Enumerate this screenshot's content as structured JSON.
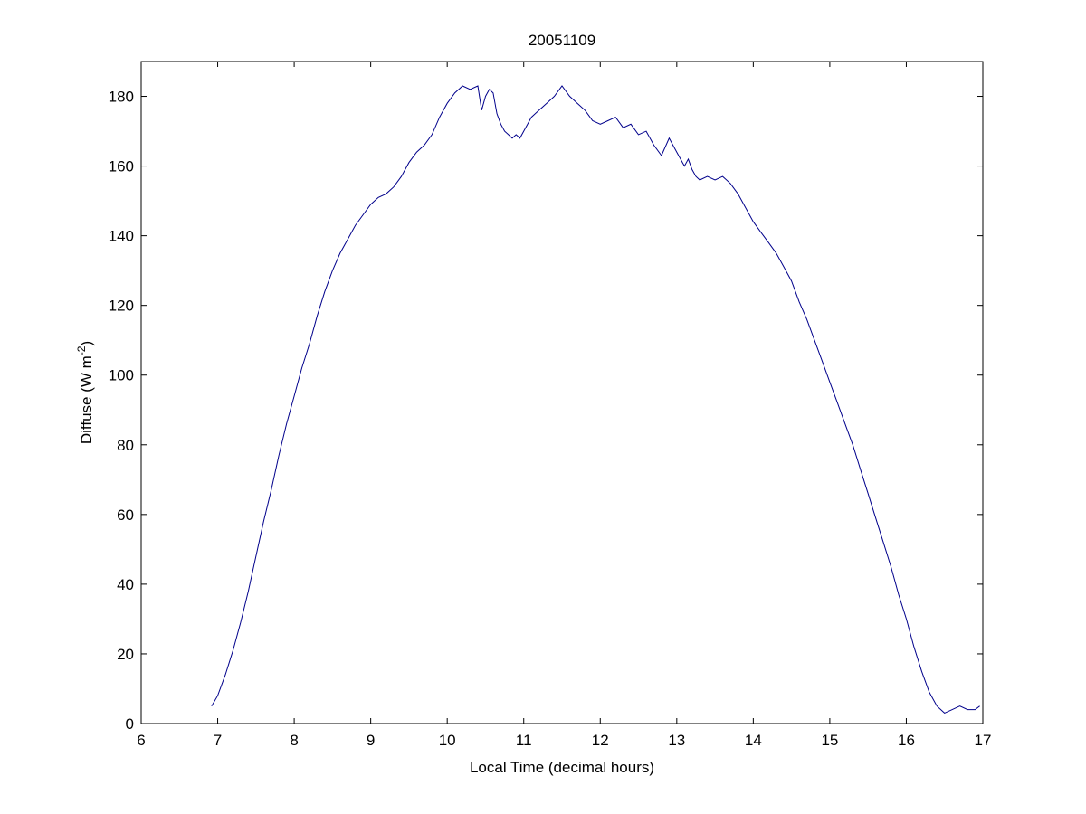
{
  "figure": {
    "background": "#ffffff",
    "line_color": "#00008b"
  },
  "chart_data": {
    "type": "line",
    "title": "20051109",
    "xlabel": "Local Time (decimal hours)",
    "ylabel": {
      "prefix": "Diffuse (W m",
      "superscript": "-2",
      "suffix": ")"
    },
    "xlim": [
      6,
      17
    ],
    "ylim": [
      0,
      190
    ],
    "xticks": [
      6,
      7,
      8,
      9,
      10,
      11,
      12,
      13,
      14,
      15,
      16,
      17
    ],
    "xtick_labels": [
      "6",
      "7",
      "8",
      "9",
      "10",
      "11",
      "12",
      "13",
      "14",
      "15",
      "16",
      "17"
    ],
    "yticks": [
      0,
      20,
      40,
      60,
      80,
      100,
      120,
      140,
      160,
      180
    ],
    "ytick_labels": [
      "0",
      "20",
      "40",
      "60",
      "80",
      "100",
      "120",
      "140",
      "160",
      "180"
    ],
    "grid": false,
    "box": true,
    "series": [
      {
        "x": [
          6.92,
          7.0,
          7.1,
          7.2,
          7.3,
          7.4,
          7.5,
          7.6,
          7.7,
          7.8,
          7.9,
          8.0,
          8.1,
          8.2,
          8.3,
          8.4,
          8.5,
          8.6,
          8.7,
          8.8,
          8.9,
          9.0,
          9.1,
          9.2,
          9.3,
          9.4,
          9.5,
          9.6,
          9.7,
          9.8,
          9.9,
          10.0,
          10.1,
          10.2,
          10.3,
          10.4,
          10.45,
          10.5,
          10.55,
          10.6,
          10.65,
          10.7,
          10.75,
          10.8,
          10.85,
          10.9,
          10.95,
          11.0,
          11.05,
          11.1,
          11.2,
          11.3,
          11.4,
          11.5,
          11.6,
          11.7,
          11.8,
          11.9,
          12.0,
          12.1,
          12.2,
          12.3,
          12.4,
          12.5,
          12.6,
          12.7,
          12.8,
          12.9,
          13.0,
          13.05,
          13.1,
          13.15,
          13.2,
          13.25,
          13.3,
          13.4,
          13.5,
          13.6,
          13.7,
          13.8,
          13.9,
          14.0,
          14.1,
          14.2,
          14.3,
          14.4,
          14.5,
          14.6,
          14.7,
          14.8,
          14.9,
          15.0,
          15.1,
          15.2,
          15.3,
          15.4,
          15.5,
          15.6,
          15.7,
          15.8,
          15.9,
          16.0,
          16.1,
          16.2,
          16.3,
          16.4,
          16.5,
          16.6,
          16.7,
          16.8,
          16.9,
          16.96
        ],
        "y": [
          5,
          8,
          14,
          21,
          29,
          38,
          48,
          58,
          67,
          77,
          86,
          94,
          102,
          109,
          117,
          124,
          130,
          135,
          139,
          143,
          146,
          149,
          151,
          152,
          154,
          157,
          161,
          164,
          166,
          169,
          174,
          178,
          181,
          183,
          182,
          183,
          176,
          180,
          182,
          181,
          175,
          172,
          170,
          169,
          168,
          169,
          168,
          170,
          172,
          174,
          176,
          178,
          180,
          183,
          180,
          178,
          176,
          173,
          172,
          173,
          174,
          171,
          172,
          169,
          170,
          166,
          163,
          168,
          164,
          162,
          160,
          162,
          159,
          157,
          156,
          157,
          156,
          157,
          155,
          152,
          148,
          144,
          141,
          138,
          135,
          131,
          127,
          121,
          116,
          110,
          104,
          98,
          92,
          86,
          80,
          73,
          66,
          59,
          52,
          45,
          37,
          30,
          22,
          15,
          9,
          5,
          3,
          4,
          5,
          4,
          4,
          5
        ]
      }
    ]
  }
}
